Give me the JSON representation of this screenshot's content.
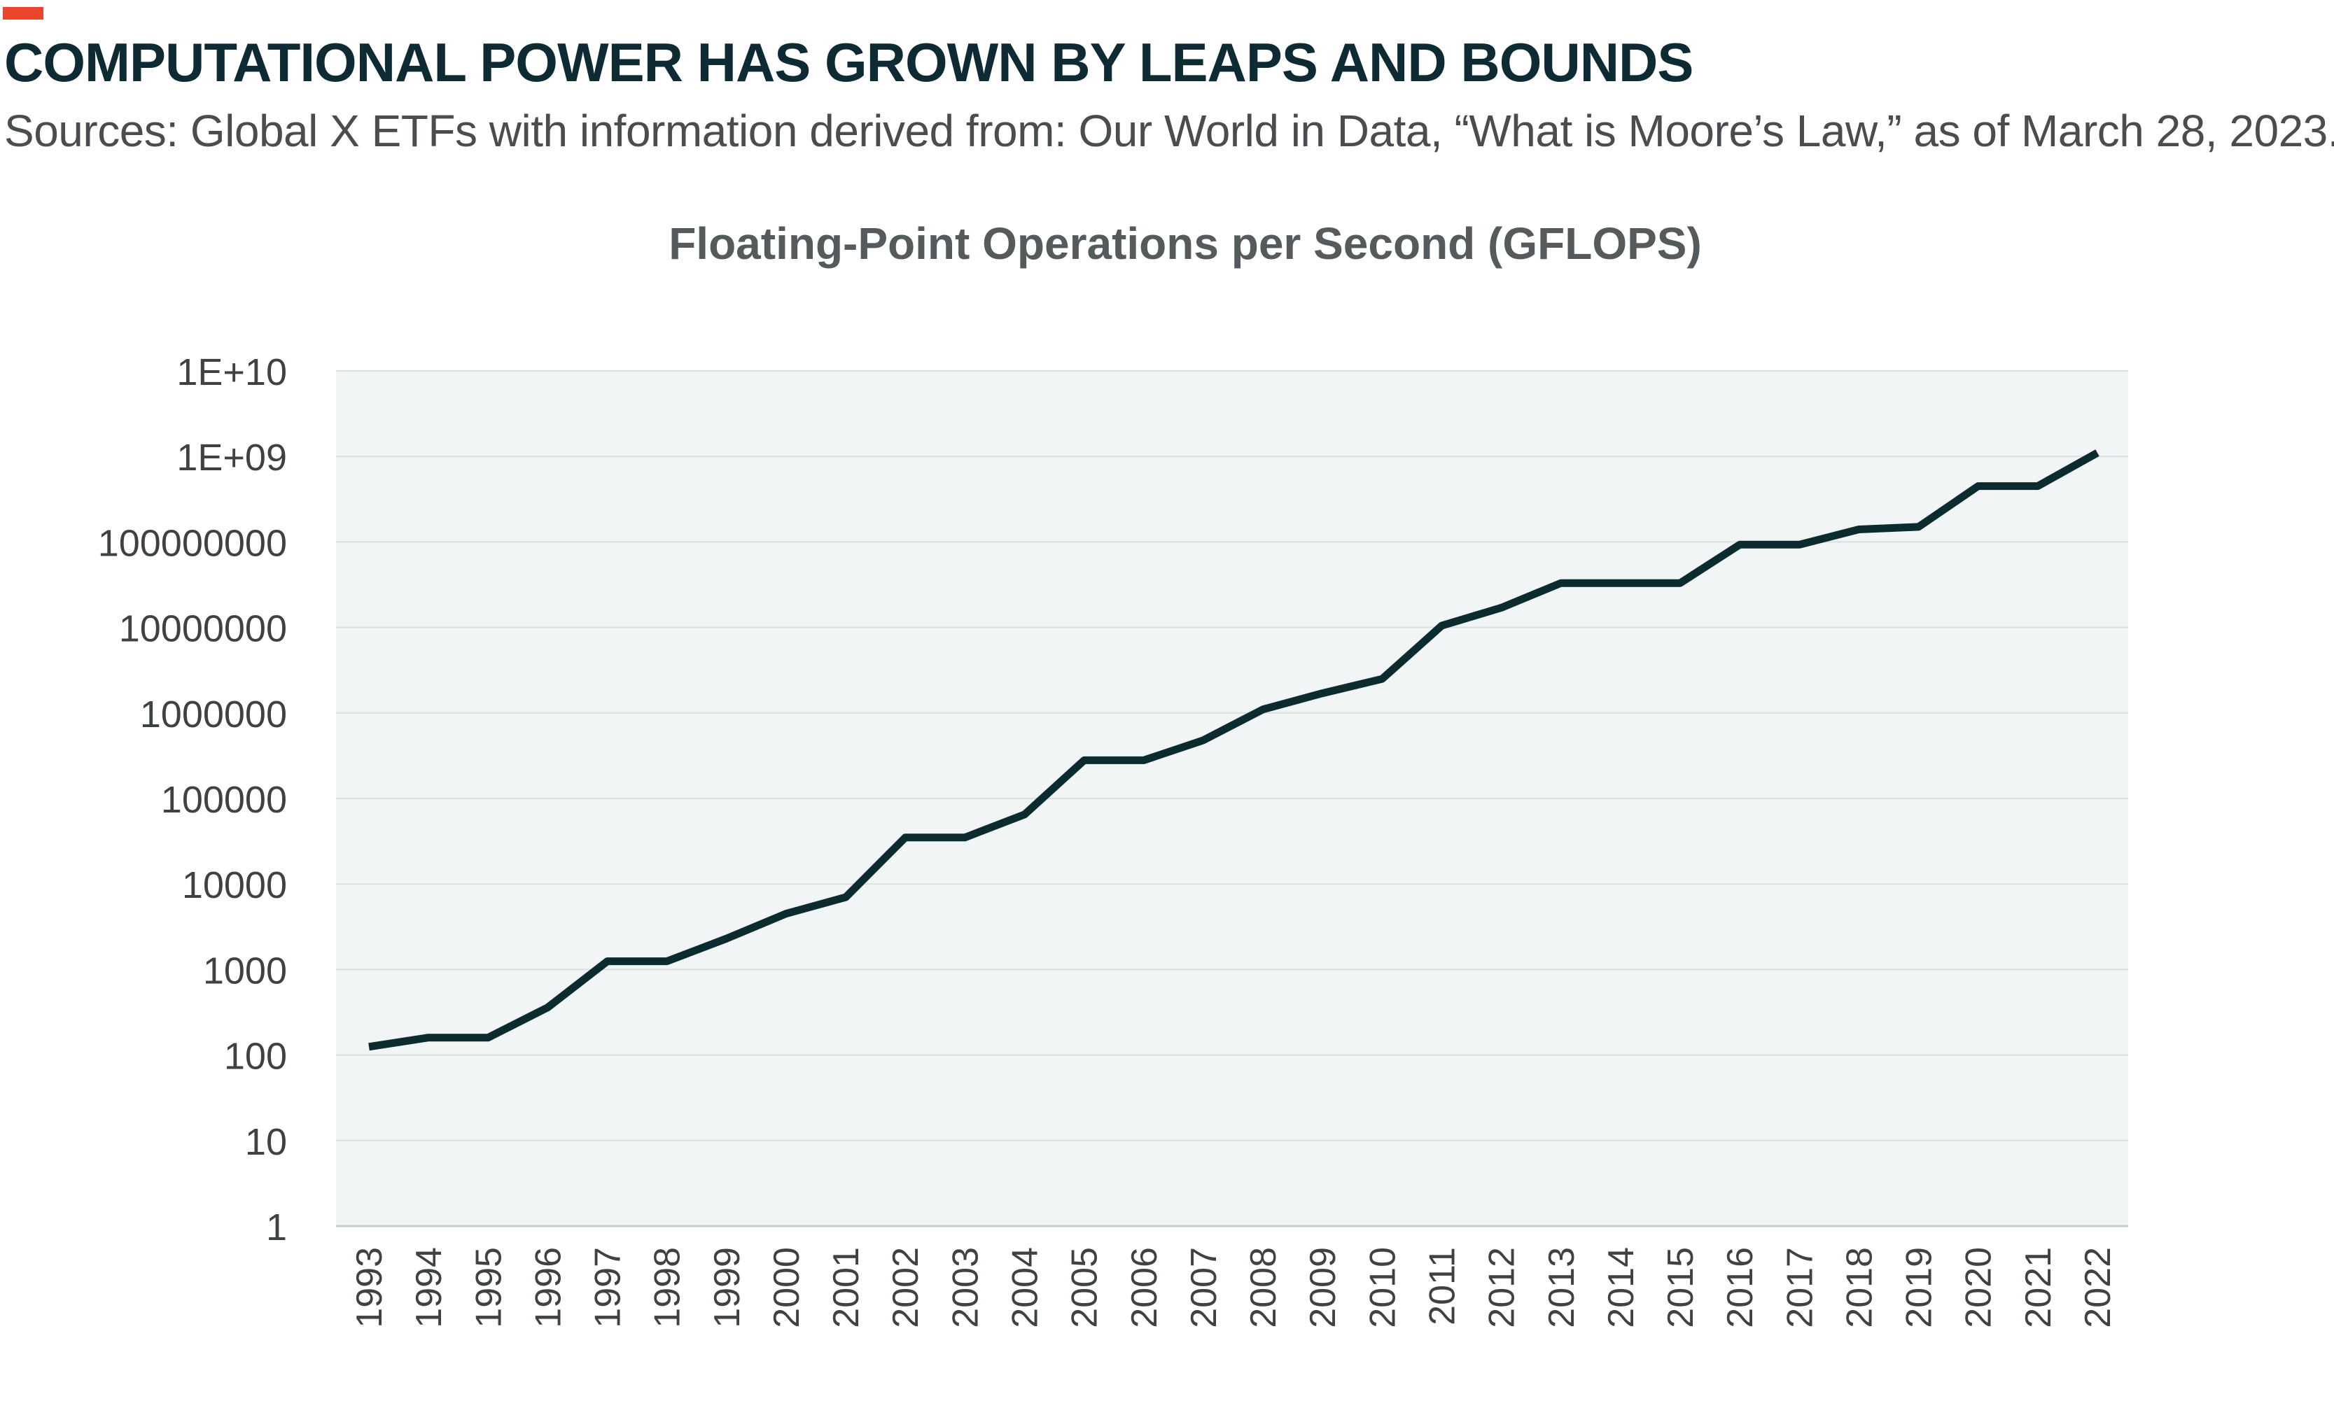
{
  "header": {
    "title": "COMPUTATIONAL POWER HAS GROWN BY LEAPS AND BOUNDS",
    "subtitle": "Sources: Global X ETFs with information derived from: Our World in Data, “What is Moore’s Law,” as of March 28, 2023."
  },
  "colors": {
    "accent": "#e8472b",
    "line": "#0b2b2e",
    "plot_background": "#f1f5f6",
    "grid": "#dcdfe0"
  },
  "chart_data": {
    "type": "line",
    "title": "Floating-Point Operations per Second (GFLOPS)",
    "xlabel": "",
    "ylabel": "",
    "y_scale": "log10",
    "ylim": [
      1,
      10000000000
    ],
    "grid": "horizontal",
    "legend": "none",
    "y_tick_labels": [
      "1",
      "10",
      "100",
      "1000",
      "10000",
      "100000",
      "1000000",
      "10000000",
      "100000000",
      "1E+09",
      "1E+10"
    ],
    "categories": [
      "1993",
      "1994",
      "1995",
      "1996",
      "1997",
      "1998",
      "1999",
      "2000",
      "2001",
      "2002",
      "2003",
      "2004",
      "2005",
      "2006",
      "2007",
      "2008",
      "2009",
      "2010",
      "2011",
      "2012",
      "2013",
      "2014",
      "2015",
      "2016",
      "2017",
      "2018",
      "2019",
      "2020",
      "2021",
      "2022"
    ],
    "series": [
      {
        "values": [
          125,
          160,
          160,
          360,
          1250,
          1250,
          2300,
          4500,
          7000,
          35000,
          35000,
          65000,
          280000,
          280000,
          480000,
          1100000,
          1700000,
          2500000,
          10500000,
          17000000,
          33000000,
          33000000,
          33000000,
          93000000,
          93000000,
          140000000,
          150000000,
          450000000,
          450000000,
          1100000000
        ]
      }
    ]
  }
}
